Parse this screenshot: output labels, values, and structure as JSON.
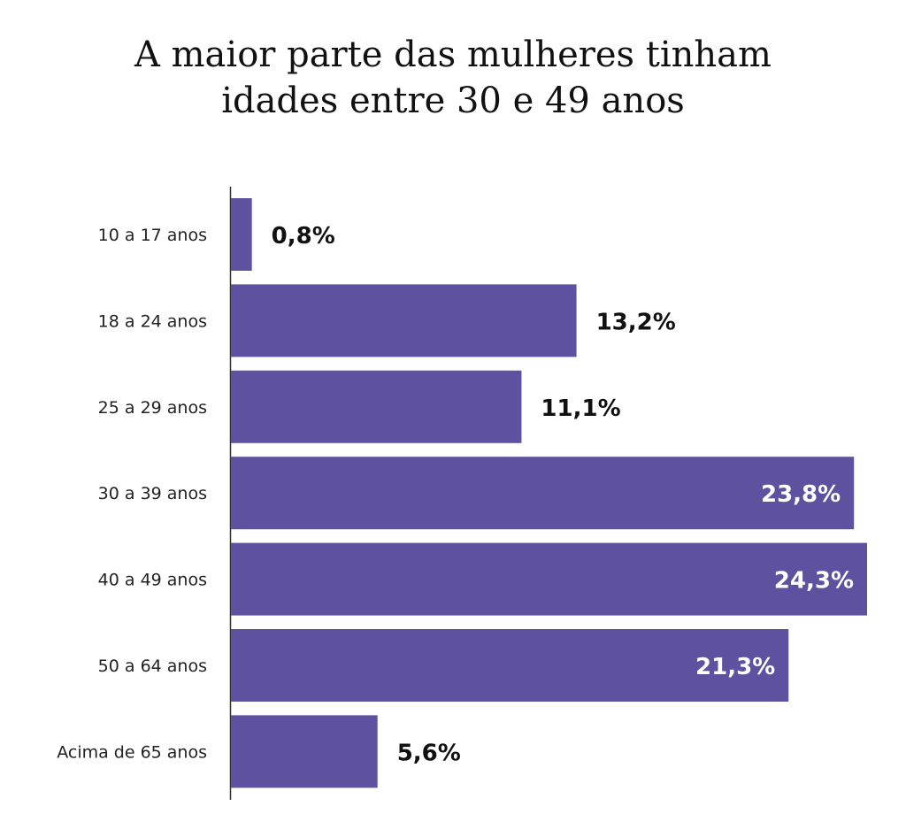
{
  "chart_data": {
    "type": "bar",
    "orientation": "horizontal",
    "title": [
      "A maior parte das mulheres tinham",
      "idades entre 30 e 49 anos"
    ],
    "categories": [
      "10 a 17 anos",
      "18 a 24 anos",
      "25 a 29 anos",
      "30 a 39 anos",
      "40 a 49 anos",
      "50 a 64 anos",
      "Acima de 65 anos"
    ],
    "values": [
      0.8,
      13.2,
      11.1,
      23.8,
      24.3,
      21.3,
      5.6
    ],
    "value_labels": [
      "0,8%",
      "13,2%",
      "11,1%",
      "23,8%",
      "24,3%",
      "21,3%",
      "5,6%"
    ],
    "unit": "%",
    "xlim": [
      0,
      24.3
    ],
    "grid": false,
    "bar_color": "#5e52a0"
  }
}
